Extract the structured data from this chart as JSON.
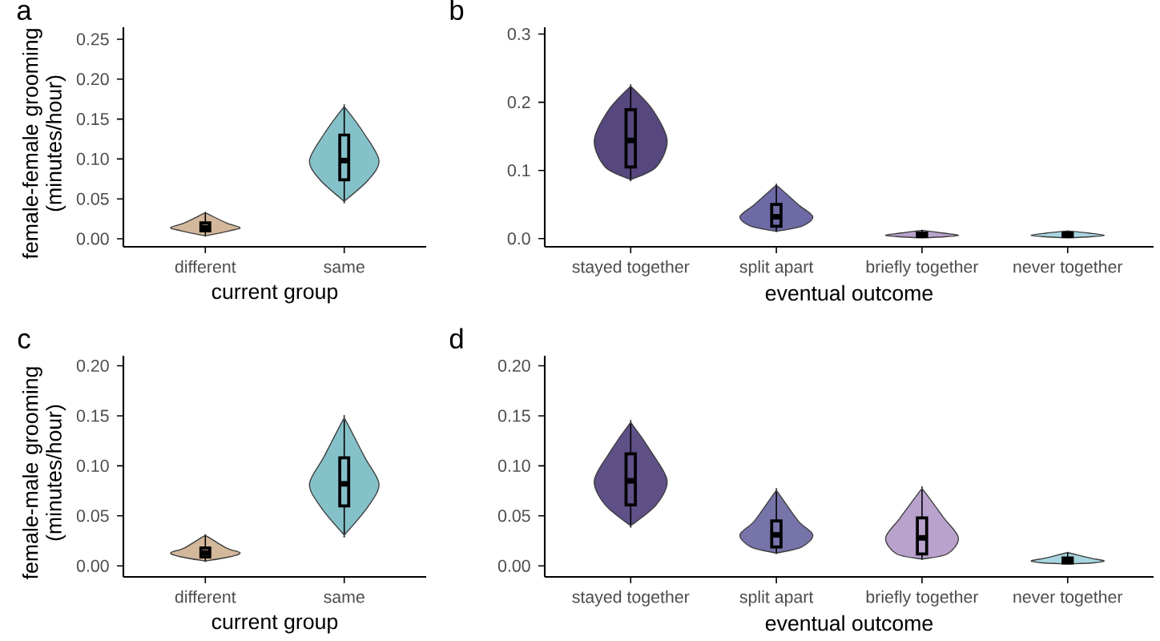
{
  "chart_data": [
    {
      "type": "box",
      "title": "a",
      "xlabel": "current group",
      "ylabel": "female-female grooming (minutes/hour)",
      "categories": [
        "different",
        "same"
      ],
      "colors": [
        "#d4b89c",
        "#85c1c8"
      ],
      "ylim": [
        -0.01,
        0.265
      ],
      "yticks": [
        {
          "value": 0,
          "label": "0.00"
        },
        {
          "value": 0.05,
          "label": "0.05"
        },
        {
          "value": 0.1,
          "label": "0.10"
        },
        {
          "value": 0.15,
          "label": "0.15"
        },
        {
          "value": 0.2,
          "label": "0.20"
        },
        {
          "value": 0.25,
          "label": "0.25"
        }
      ],
      "boxes": [
        {
          "low": 0.004,
          "q1": 0.01,
          "median": 0.014,
          "q3": 0.02,
          "high": 0.032
        },
        {
          "low": 0.048,
          "q1": 0.074,
          "median": 0.098,
          "q3": 0.13,
          "high": 0.164
        }
      ]
    },
    {
      "type": "box",
      "title": "b",
      "xlabel": "eventual outcome",
      "categories": [
        "stayed together",
        "split apart",
        "briefly together",
        "never together"
      ],
      "colors": [
        "#56477e",
        "#6e6aa6",
        "#b8a3cc",
        "#a8d6e0"
      ],
      "ylim": [
        -0.012,
        0.31
      ],
      "yticks": [
        {
          "value": 0,
          "label": "0.0"
        },
        {
          "value": 0.1,
          "label": "0.1"
        },
        {
          "value": 0.2,
          "label": "0.2"
        },
        {
          "value": 0.3,
          "label": "0.3"
        }
      ],
      "boxes": [
        {
          "low": 0.087,
          "q1": 0.105,
          "median": 0.144,
          "q3": 0.189,
          "high": 0.222
        },
        {
          "low": 0.011,
          "q1": 0.018,
          "median": 0.032,
          "q3": 0.05,
          "high": 0.077
        },
        {
          "low": 0.001,
          "q1": 0.003,
          "median": 0.005,
          "q3": 0.008,
          "high": 0.012
        },
        {
          "low": 0.001,
          "q1": 0.003,
          "median": 0.005,
          "q3": 0.008,
          "high": 0.011
        }
      ]
    },
    {
      "type": "box",
      "title": "c",
      "xlabel": "current group",
      "ylabel": "female-male grooming (minutes/hour)",
      "categories": [
        "different",
        "same"
      ],
      "colors": [
        "#d4b89c",
        "#85c1c8"
      ],
      "ylim": [
        -0.011,
        0.21
      ],
      "yticks": [
        {
          "value": 0,
          "label": "0.00"
        },
        {
          "value": 0.05,
          "label": "0.05"
        },
        {
          "value": 0.1,
          "label": "0.10"
        },
        {
          "value": 0.15,
          "label": "0.15"
        },
        {
          "value": 0.2,
          "label": "0.20"
        }
      ],
      "boxes": [
        {
          "low": 0.005,
          "q1": 0.009,
          "median": 0.013,
          "q3": 0.018,
          "high": 0.03
        },
        {
          "low": 0.032,
          "q1": 0.06,
          "median": 0.082,
          "q3": 0.108,
          "high": 0.146
        }
      ]
    },
    {
      "type": "box",
      "title": "d",
      "xlabel": "eventual outcome",
      "categories": [
        "stayed together",
        "split apart",
        "briefly together",
        "never together"
      ],
      "colors": [
        "#5f5088",
        "#7774aa",
        "#b9a2cc",
        "#a8d6e0"
      ],
      "ylim": [
        -0.011,
        0.21
      ],
      "yticks": [
        {
          "value": 0,
          "label": "0.00"
        },
        {
          "value": 0.05,
          "label": "0.05"
        },
        {
          "value": 0.1,
          "label": "0.10"
        },
        {
          "value": 0.15,
          "label": "0.15"
        },
        {
          "value": 0.2,
          "label": "0.20"
        }
      ],
      "boxes": [
        {
          "low": 0.041,
          "q1": 0.061,
          "median": 0.085,
          "q3": 0.112,
          "high": 0.142
        },
        {
          "low": 0.013,
          "q1": 0.019,
          "median": 0.031,
          "q3": 0.045,
          "high": 0.074
        },
        {
          "low": 0.007,
          "q1": 0.012,
          "median": 0.028,
          "q3": 0.048,
          "high": 0.076
        },
        {
          "low": 0.002,
          "q1": 0.003,
          "median": 0.005,
          "q3": 0.008,
          "high": 0.013
        }
      ]
    }
  ]
}
